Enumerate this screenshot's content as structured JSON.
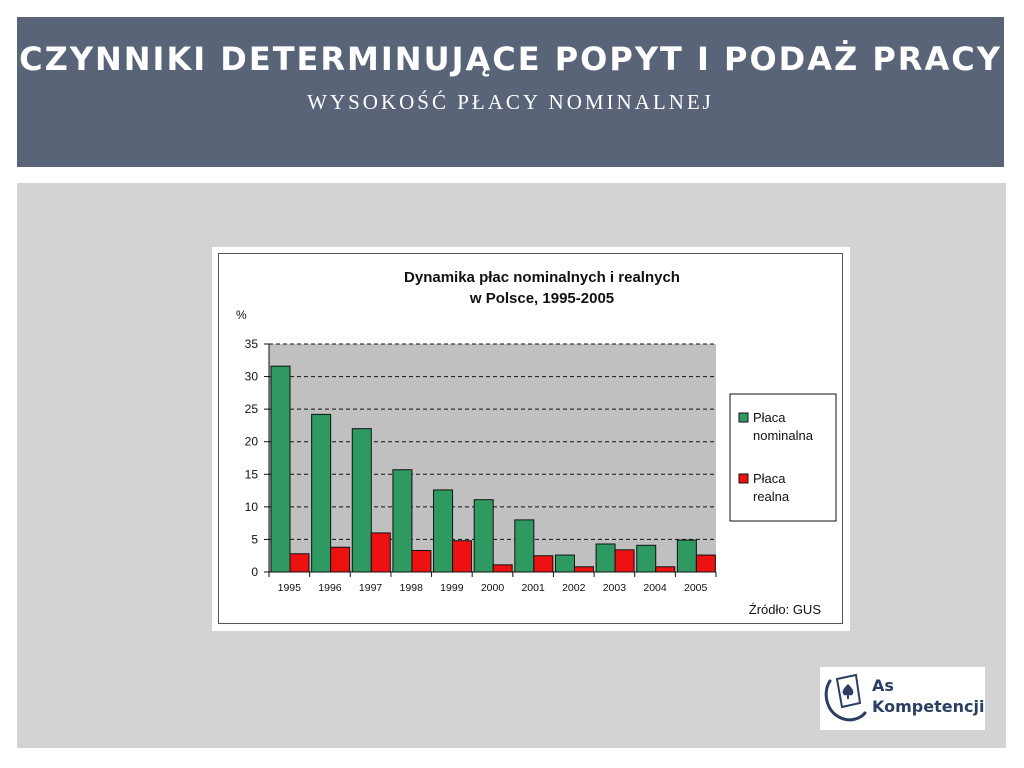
{
  "slide": {
    "title": "Czynniki determinujące popyt i podaż pracy",
    "subtitle": "Wysokość płacy nominalnej"
  },
  "logo": {
    "line1": "As",
    "line2": "Kompetencji",
    "icon": "spade-card-icon"
  },
  "chart_data": {
    "type": "bar",
    "title_lines": [
      "Dynamika płac nominalnych i realnych",
      "w Polsce, 1995-2005"
    ],
    "ylabel": "%",
    "source": "Źródło: GUS",
    "categories": [
      "1995",
      "1996",
      "1997",
      "1998",
      "1999",
      "2000",
      "2001",
      "2002",
      "2003",
      "2004",
      "2005"
    ],
    "ylim": [
      0,
      35
    ],
    "yticks": [
      0,
      5,
      10,
      15,
      20,
      25,
      30,
      35
    ],
    "grid": "dashed horizontal",
    "legend_position": "right",
    "plot_background": "#c0c0c0",
    "series": [
      {
        "name": "Płaca nominalna",
        "legend_lines": [
          "Płaca",
          "nominalna"
        ],
        "color": "#2e9a62",
        "values": [
          31.6,
          24.2,
          22.0,
          15.7,
          12.6,
          11.1,
          8.0,
          2.6,
          4.3,
          4.1,
          4.9
        ]
      },
      {
        "name": "Płaca realna",
        "legend_lines": [
          "Płaca",
          "realna"
        ],
        "color": "#ee1111",
        "values": [
          2.8,
          3.8,
          6.0,
          3.3,
          4.8,
          1.1,
          2.5,
          0.8,
          3.4,
          0.8,
          2.6
        ]
      }
    ]
  }
}
